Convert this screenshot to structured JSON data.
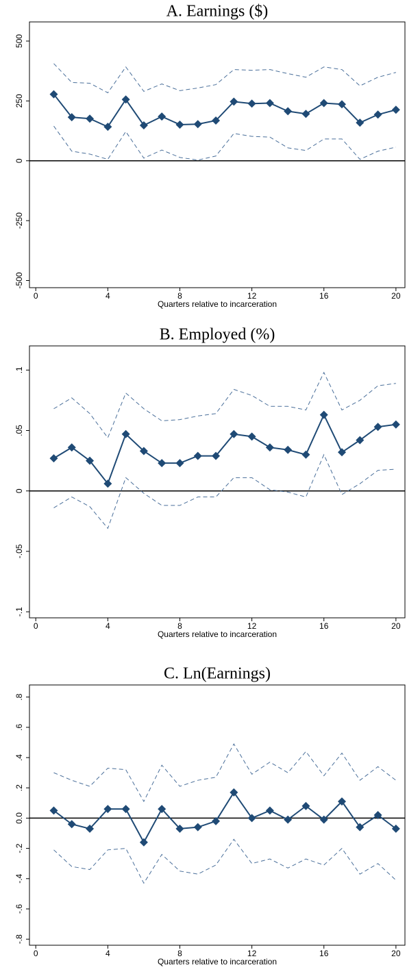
{
  "chart_data": [
    {
      "type": "line",
      "title": "A. Earnings ($)",
      "xlabel": "Quarters relative to incarceration",
      "x": [
        1,
        2,
        3,
        4,
        5,
        6,
        7,
        8,
        9,
        10,
        11,
        12,
        13,
        14,
        15,
        16,
        17,
        18,
        19,
        20
      ],
      "xlim": [
        -0.35,
        20.5
      ],
      "xticks": [
        0,
        4,
        8,
        12,
        16,
        20
      ],
      "ylim": [
        -530,
        580
      ],
      "yticks": [
        500,
        250,
        0,
        -250,
        -500
      ],
      "hline": 0,
      "series": [
        {
          "color": "#4a6f9a",
          "style": "dashed",
          "values": [
            406,
            327,
            324,
            284,
            392,
            290,
            321,
            293,
            304,
            318,
            381,
            378,
            381,
            364,
            349,
            392,
            381,
            313,
            349,
            369
          ]
        },
        {
          "color": "#4a6f9a",
          "style": "dashed",
          "values": [
            145,
            40,
            28,
            6,
            122,
            11,
            45,
            14,
            3,
            20,
            114,
            102,
            99,
            54,
            43,
            91,
            91,
            6,
            40,
            57
          ]
        },
        {
          "color": "#1f4a75",
          "style": "solid",
          "marker": "diamond",
          "values": [
            278,
            182,
            176,
            142,
            256,
            148,
            185,
            151,
            153,
            168,
            247,
            239,
            241,
            207,
            196,
            241,
            236,
            159,
            193,
            213
          ]
        }
      ]
    },
    {
      "type": "line",
      "title": "B. Employed (%)",
      "xlabel": "Quarters relative to incarceration",
      "x": [
        1,
        2,
        3,
        4,
        5,
        6,
        7,
        8,
        9,
        10,
        11,
        12,
        13,
        14,
        15,
        16,
        17,
        18,
        19,
        20
      ],
      "xlim": [
        -0.35,
        20.5
      ],
      "xticks": [
        0,
        4,
        8,
        12,
        16,
        20
      ],
      "ylim": [
        -0.105,
        0.12
      ],
      "yticks": [
        {
          "value": 0.1,
          "label": ".1"
        },
        {
          "value": 0.05,
          "label": ".05"
        },
        0,
        {
          "value": -0.05,
          "label": "-.05"
        },
        {
          "value": -0.1,
          "label": "-.1"
        }
      ],
      "hline": 0,
      "series": [
        {
          "color": "#4a6f9a",
          "style": "dashed",
          "values": [
            0.068,
            0.077,
            0.064,
            0.044,
            0.081,
            0.068,
            0.058,
            0.059,
            0.062,
            0.064,
            0.084,
            0.079,
            0.07,
            0.07,
            0.067,
            0.098,
            0.067,
            0.075,
            0.087,
            0.089
          ]
        },
        {
          "color": "#4a6f9a",
          "style": "dashed",
          "values": [
            -0.014,
            -0.005,
            -0.013,
            -0.031,
            0.011,
            -0.002,
            -0.012,
            -0.012,
            -0.005,
            -0.005,
            0.011,
            0.011,
            0.001,
            -0.001,
            -0.005,
            0.03,
            -0.003,
            0.006,
            0.017,
            0.018
          ]
        },
        {
          "color": "#1f4a75",
          "style": "solid",
          "marker": "diamond",
          "values": [
            0.027,
            0.036,
            0.025,
            0.006,
            0.047,
            0.033,
            0.023,
            0.023,
            0.029,
            0.029,
            0.047,
            0.045,
            0.036,
            0.034,
            0.03,
            0.063,
            0.032,
            0.042,
            0.053,
            0.055
          ]
        }
      ]
    },
    {
      "type": "line",
      "title": "C. Ln(Earnings)",
      "xlabel": "Quarters relative to incarceration",
      "x": [
        1,
        2,
        3,
        4,
        5,
        6,
        7,
        8,
        9,
        10,
        11,
        12,
        13,
        14,
        15,
        16,
        17,
        18,
        19,
        20
      ],
      "xlim": [
        -0.35,
        20.5
      ],
      "xticks": [
        0,
        4,
        8,
        12,
        16,
        20
      ],
      "ylim": [
        -0.84,
        0.88
      ],
      "yticks": [
        {
          "value": 0.8,
          "label": ".8"
        },
        {
          "value": 0.6,
          "label": ".6"
        },
        {
          "value": 0.4,
          "label": ".4"
        },
        {
          "value": 0.2,
          "label": ".2"
        },
        {
          "value": 0,
          "label": "0.0"
        },
        {
          "value": -0.2,
          "label": "-.2"
        },
        {
          "value": -0.4,
          "label": "-.4"
        },
        {
          "value": -0.6,
          "label": "-.6"
        },
        {
          "value": -0.8,
          "label": "-.8"
        }
      ],
      "hline": 0,
      "series": [
        {
          "color": "#4a6f9a",
          "style": "dashed",
          "values": [
            0.3,
            0.25,
            0.21,
            0.33,
            0.32,
            0.11,
            0.35,
            0.21,
            0.25,
            0.27,
            0.49,
            0.29,
            0.37,
            0.3,
            0.44,
            0.28,
            0.43,
            0.25,
            0.34,
            0.25
          ]
        },
        {
          "color": "#4a6f9a",
          "style": "dashed",
          "values": [
            -0.21,
            -0.32,
            -0.34,
            -0.21,
            -0.2,
            -0.43,
            -0.24,
            -0.35,
            -0.37,
            -0.31,
            -0.14,
            -0.3,
            -0.27,
            -0.33,
            -0.27,
            -0.31,
            -0.2,
            -0.37,
            -0.3,
            -0.41
          ]
        },
        {
          "color": "#1f4a75",
          "style": "solid",
          "marker": "diamond",
          "values": [
            0.05,
            -0.04,
            -0.07,
            0.06,
            0.06,
            -0.16,
            0.06,
            -0.07,
            -0.06,
            -0.02,
            0.17,
            0,
            0.05,
            -0.01,
            0.08,
            -0.01,
            0.11,
            -0.06,
            0.02,
            -0.07
          ]
        }
      ]
    }
  ]
}
